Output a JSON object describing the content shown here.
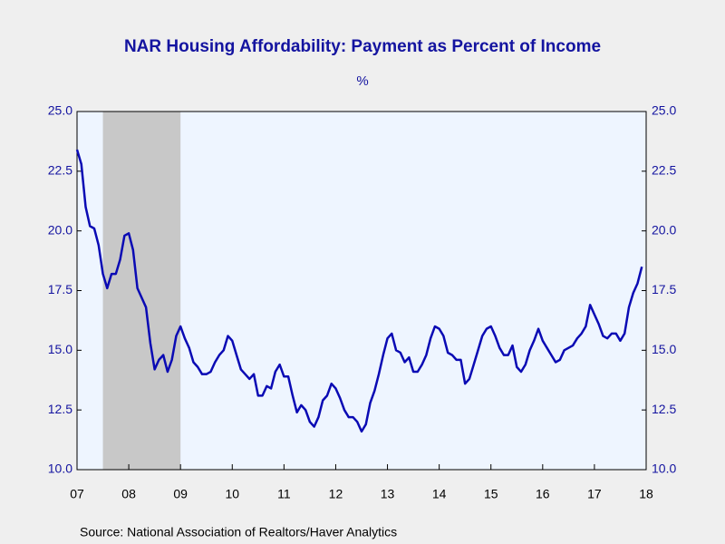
{
  "chart_data": {
    "type": "line",
    "title": "NAR Housing Affordability: Payment as Percent of Income",
    "subtitle": "%",
    "source": "Source:  National Association of Realtors/Haver Analytics",
    "color": "#0a0ab4",
    "recession_color": "#c8c8c8",
    "recession": [
      2007.5,
      2009.0
    ],
    "xlim": [
      2007,
      2018
    ],
    "xticks": [
      {
        "value": 2007,
        "label": "07"
      },
      {
        "value": 2008,
        "label": "08"
      },
      {
        "value": 2009,
        "label": "09"
      },
      {
        "value": 2010,
        "label": "10"
      },
      {
        "value": 2011,
        "label": "11"
      },
      {
        "value": 2012,
        "label": "12"
      },
      {
        "value": 2013,
        "label": "13"
      },
      {
        "value": 2014,
        "label": "14"
      },
      {
        "value": 2015,
        "label": "15"
      },
      {
        "value": 2016,
        "label": "16"
      },
      {
        "value": 2017,
        "label": "17"
      },
      {
        "value": 2018,
        "label": "18"
      }
    ],
    "ylim": [
      10,
      25
    ],
    "yticks": [
      {
        "value": 10,
        "label": "10.0"
      },
      {
        "value": 12.5,
        "label": "12.5"
      },
      {
        "value": 15,
        "label": "15.0"
      },
      {
        "value": 17.5,
        "label": "17.5"
      },
      {
        "value": 20,
        "label": "20.0"
      },
      {
        "value": 22.5,
        "label": "22.5"
      },
      {
        "value": 25,
        "label": "25.0"
      }
    ],
    "x": [
      2007,
      2007.083,
      2007.167,
      2007.25,
      2007.333,
      2007.417,
      2007.5,
      2007.583,
      2007.667,
      2007.75,
      2007.833,
      2007.917,
      2008,
      2008.083,
      2008.167,
      2008.25,
      2008.333,
      2008.417,
      2008.5,
      2008.583,
      2008.667,
      2008.75,
      2008.833,
      2008.917,
      2009,
      2009.083,
      2009.167,
      2009.25,
      2009.333,
      2009.417,
      2009.5,
      2009.583,
      2009.667,
      2009.75,
      2009.833,
      2009.917,
      2010,
      2010.083,
      2010.167,
      2010.25,
      2010.333,
      2010.417,
      2010.5,
      2010.583,
      2010.667,
      2010.75,
      2010.833,
      2010.917,
      2011,
      2011.083,
      2011.167,
      2011.25,
      2011.333,
      2011.417,
      2011.5,
      2011.583,
      2011.667,
      2011.75,
      2011.833,
      2011.917,
      2012,
      2012.083,
      2012.167,
      2012.25,
      2012.333,
      2012.417,
      2012.5,
      2012.583,
      2012.667,
      2012.75,
      2012.833,
      2012.917,
      2013,
      2013.083,
      2013.167,
      2013.25,
      2013.333,
      2013.417,
      2013.5,
      2013.583,
      2013.667,
      2013.75,
      2013.833,
      2013.917,
      2014,
      2014.083,
      2014.167,
      2014.25,
      2014.333,
      2014.417,
      2014.5,
      2014.583,
      2014.667,
      2014.75,
      2014.833,
      2014.917,
      2015,
      2015.083,
      2015.167,
      2015.25,
      2015.333,
      2015.417,
      2015.5,
      2015.583,
      2015.667,
      2015.75,
      2015.833,
      2015.917,
      2016,
      2016.083,
      2016.167,
      2016.25,
      2016.333,
      2016.417,
      2016.5,
      2016.583,
      2016.667,
      2016.75,
      2016.833,
      2016.917,
      2017,
      2017.083,
      2017.167,
      2017.25,
      2017.333,
      2017.417,
      2017.5,
      2017.583,
      2017.667,
      2017.75,
      2017.833,
      2017.917
    ],
    "values": [
      23.4,
      22.8,
      21.0,
      20.2,
      20.1,
      19.4,
      18.2,
      17.6,
      18.2,
      18.2,
      18.8,
      19.8,
      19.9,
      19.2,
      17.6,
      17.2,
      16.8,
      15.3,
      14.2,
      14.6,
      14.8,
      14.1,
      14.6,
      15.6,
      16.0,
      15.5,
      15.1,
      14.5,
      14.3,
      14.0,
      14.0,
      14.1,
      14.5,
      14.8,
      15.0,
      15.6,
      15.4,
      14.8,
      14.2,
      14.0,
      13.8,
      14.0,
      13.1,
      13.1,
      13.5,
      13.4,
      14.1,
      14.4,
      13.9,
      13.9,
      13.1,
      12.4,
      12.7,
      12.5,
      12.0,
      11.8,
      12.2,
      12.9,
      13.1,
      13.6,
      13.4,
      13.0,
      12.5,
      12.2,
      12.2,
      12.0,
      11.6,
      11.9,
      12.8,
      13.3,
      14.0,
      14.8,
      15.5,
      15.7,
      15.0,
      14.9,
      14.5,
      14.7,
      14.1,
      14.1,
      14.4,
      14.8,
      15.5,
      16.0,
      15.9,
      15.6,
      14.9,
      14.8,
      14.6,
      14.6,
      13.6,
      13.8,
      14.4,
      15.0,
      15.6,
      15.9,
      16.0,
      15.6,
      15.1,
      14.8,
      14.8,
      15.2,
      14.3,
      14.1,
      14.4,
      15.0,
      15.4,
      15.9,
      15.4,
      15.1,
      14.8,
      14.5,
      14.6,
      15.0,
      15.1,
      15.2,
      15.5,
      15.7,
      16.0,
      16.9,
      16.5,
      16.1,
      15.6,
      15.5,
      15.7,
      15.7,
      15.4,
      15.7,
      16.8,
      17.4,
      17.8,
      18.5
    ]
  }
}
